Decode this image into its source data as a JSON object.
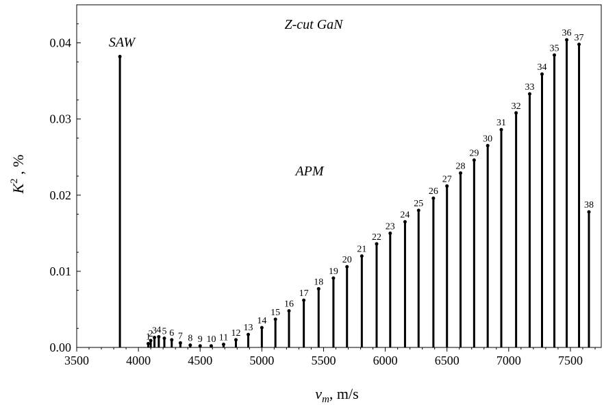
{
  "chart_data": {
    "type": "stem",
    "title": "",
    "annotations": {
      "top": "Z-cut GaN",
      "saw": "SAW",
      "apm": "APM"
    },
    "xlabel": {
      "symbol": "v",
      "subscript": "m",
      "unit": ", m/s"
    },
    "ylabel": {
      "symbol": "K",
      "superscript": "2",
      "unit": " , %"
    },
    "xlim": [
      3500,
      7750
    ],
    "ylim": [
      0,
      0.045
    ],
    "x_ticks": [
      3500,
      4000,
      4500,
      5000,
      5500,
      6000,
      6500,
      7000,
      7500
    ],
    "x_tick_labels": [
      "3500",
      "4000",
      "4500",
      "5000",
      "5500",
      "6000",
      "6500",
      "7000",
      "7500"
    ],
    "y_ticks": [
      0,
      0.01,
      0.02,
      0.03,
      0.04
    ],
    "y_tick_labels": [
      "0.00",
      "0.01",
      "0.02",
      "0.03",
      "0.04"
    ],
    "grid": false,
    "saw": {
      "x": 3850,
      "y": 0.0382
    },
    "series": [
      {
        "points": [
          {
            "label": "1",
            "x": 4080,
            "y": 0.0005
          },
          {
            "label": "2",
            "x": 4100,
            "y": 0.0009
          },
          {
            "label": "3",
            "x": 4130,
            "y": 0.0013
          },
          {
            "label": "4",
            "x": 4165,
            "y": 0.0014
          },
          {
            "label": "5",
            "x": 4210,
            "y": 0.0012
          },
          {
            "label": "6",
            "x": 4270,
            "y": 0.001
          },
          {
            "label": "7",
            "x": 4340,
            "y": 0.0006
          },
          {
            "label": "8",
            "x": 4420,
            "y": 0.0003
          },
          {
            "label": "9",
            "x": 4500,
            "y": 0.0002
          },
          {
            "label": "10",
            "x": 4590,
            "y": 0.0002
          },
          {
            "label": "11",
            "x": 4690,
            "y": 0.0004
          },
          {
            "label": "12",
            "x": 4790,
            "y": 0.001
          },
          {
            "label": "13",
            "x": 4890,
            "y": 0.0017
          },
          {
            "label": "14",
            "x": 5000,
            "y": 0.0026
          },
          {
            "label": "15",
            "x": 5110,
            "y": 0.0037
          },
          {
            "label": "16",
            "x": 5220,
            "y": 0.0048
          },
          {
            "label": "17",
            "x": 5340,
            "y": 0.0062
          },
          {
            "label": "18",
            "x": 5460,
            "y": 0.0077
          },
          {
            "label": "19",
            "x": 5580,
            "y": 0.0091
          },
          {
            "label": "20",
            "x": 5690,
            "y": 0.0106
          },
          {
            "label": "21",
            "x": 5810,
            "y": 0.012
          },
          {
            "label": "22",
            "x": 5930,
            "y": 0.0136
          },
          {
            "label": "23",
            "x": 6040,
            "y": 0.015
          },
          {
            "label": "24",
            "x": 6160,
            "y": 0.0165
          },
          {
            "label": "25",
            "x": 6270,
            "y": 0.018
          },
          {
            "label": "26",
            "x": 6390,
            "y": 0.0196
          },
          {
            "label": "27",
            "x": 6500,
            "y": 0.0212
          },
          {
            "label": "28",
            "x": 6610,
            "y": 0.0229
          },
          {
            "label": "29",
            "x": 6720,
            "y": 0.0246
          },
          {
            "label": "30",
            "x": 6830,
            "y": 0.0265
          },
          {
            "label": "31",
            "x": 6940,
            "y": 0.0286
          },
          {
            "label": "32",
            "x": 7060,
            "y": 0.0308
          },
          {
            "label": "33",
            "x": 7170,
            "y": 0.0333
          },
          {
            "label": "34",
            "x": 7270,
            "y": 0.0359
          },
          {
            "label": "35",
            "x": 7370,
            "y": 0.0384
          },
          {
            "label": "36",
            "x": 7470,
            "y": 0.0404
          },
          {
            "label": "37",
            "x": 7570,
            "y": 0.0398
          },
          {
            "label": "38",
            "x": 7650,
            "y": 0.0178
          }
        ]
      }
    ]
  }
}
